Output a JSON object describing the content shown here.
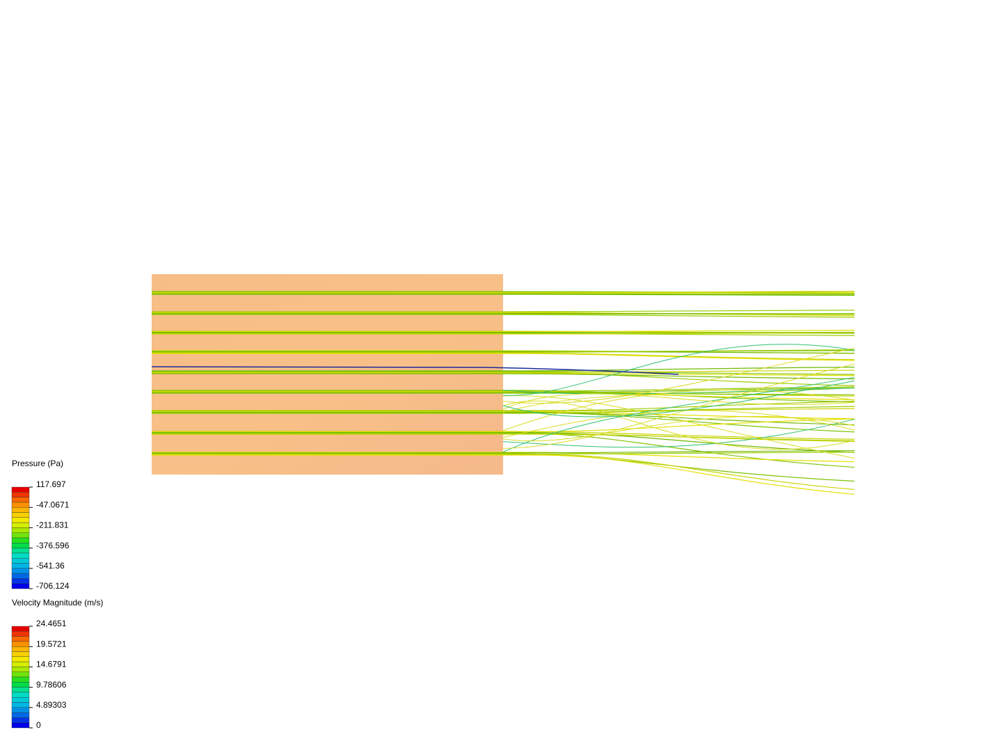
{
  "legends": [
    {
      "title": "Pressure (Pa)",
      "ticks": [
        117.697,
        -47.0671,
        -211.831,
        -376.596,
        -541.36,
        -706.124
      ]
    },
    {
      "title": "Velocity Magnitude (m/s)",
      "ticks": [
        24.4651,
        19.5721,
        14.6791,
        9.78606,
        4.89303,
        0
      ]
    }
  ]
}
